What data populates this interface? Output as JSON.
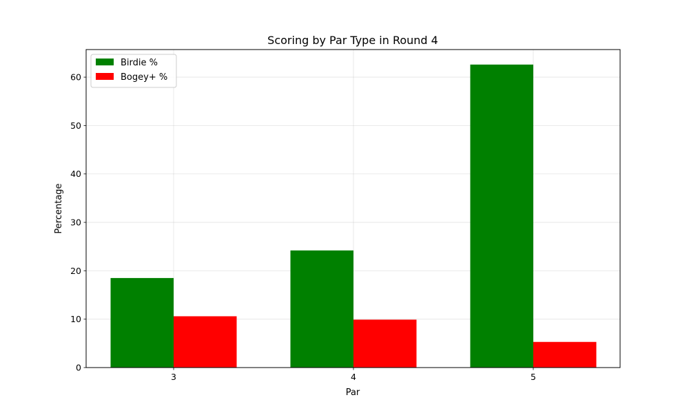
{
  "chart_data": {
    "type": "bar",
    "title": "Scoring by Par Type in Round 4",
    "xlabel": "Par",
    "ylabel": "Percentage",
    "categories": [
      "3",
      "4",
      "5"
    ],
    "series": [
      {
        "name": "Birdie %",
        "color": "#008000",
        "values": [
          18.5,
          24.2,
          62.6
        ]
      },
      {
        "name": "Bogey+ %",
        "color": "#ff0000",
        "values": [
          10.6,
          9.9,
          5.3
        ]
      }
    ],
    "ylim": [
      0,
      65.7
    ],
    "yticks": [
      0,
      10,
      20,
      30,
      40,
      50,
      60
    ],
    "grid": true,
    "legend_position": "top-left"
  }
}
